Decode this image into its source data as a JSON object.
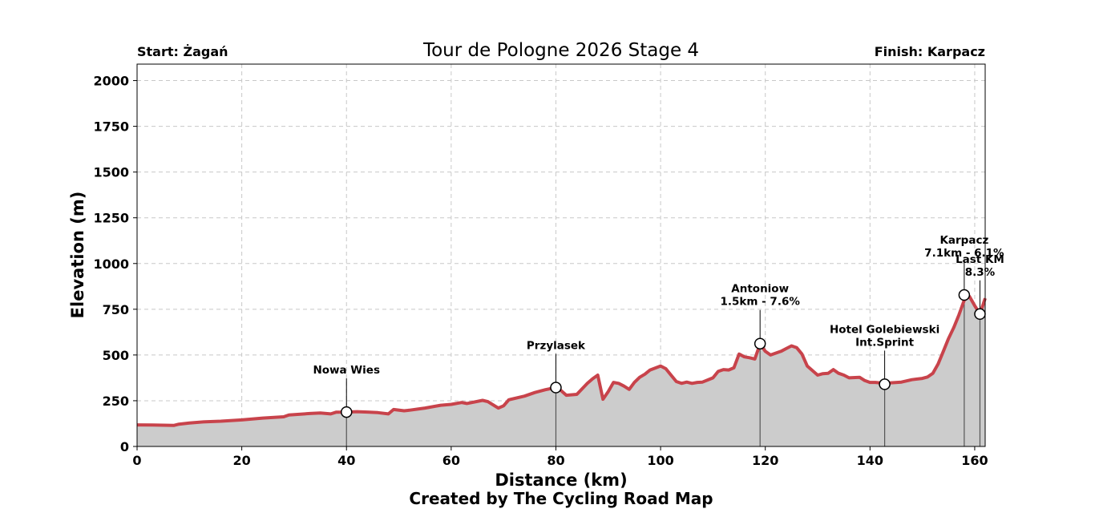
{
  "chart_data": {
    "type": "area",
    "title": "Tour de Pologne 2026 Stage 4",
    "start_label": "Start: Żagań",
    "finish_label": "Finish: Karpacz",
    "xlabel": "Distance (km)",
    "ylabel": "Elevation (m)",
    "credit": "Created by The Cycling Road Map",
    "xlim": [
      0,
      162
    ],
    "ylim": [
      0,
      2090
    ],
    "xticks": [
      0,
      20,
      40,
      60,
      80,
      100,
      120,
      140,
      160
    ],
    "yticks": [
      0,
      250,
      500,
      750,
      1000,
      1250,
      1500,
      1750,
      2000
    ],
    "grid": true,
    "line_color": "#c8434b",
    "fill_color": "#cccccc",
    "profile": {
      "x": [
        0,
        3,
        7,
        8,
        10,
        13,
        16,
        20,
        24,
        28,
        29,
        33,
        35,
        37,
        38,
        40,
        42,
        44,
        46,
        48,
        49,
        51,
        52,
        55,
        58,
        60,
        62,
        63,
        66,
        67,
        69,
        70,
        71,
        74,
        76,
        78,
        80,
        81,
        82,
        84,
        86,
        87,
        88,
        89,
        90,
        91,
        92,
        93,
        94,
        95,
        96,
        97,
        98,
        100,
        101,
        102,
        103,
        104,
        105,
        106,
        107,
        108,
        110,
        111,
        112,
        113,
        114,
        115,
        116,
        117,
        118,
        119,
        120,
        121,
        123,
        124,
        125,
        126,
        127,
        128,
        130,
        131,
        132,
        133,
        134,
        135,
        136,
        138,
        139,
        140,
        141,
        142.8,
        144,
        146,
        148,
        150,
        151,
        152,
        153,
        154,
        155,
        156,
        157,
        158,
        159,
        160,
        161,
        162
      ],
      "y": [
        118,
        117,
        115,
        122,
        128,
        135,
        138,
        145,
        155,
        162,
        172,
        180,
        183,
        178,
        187,
        188,
        190,
        188,
        185,
        178,
        202,
        195,
        198,
        210,
        225,
        230,
        240,
        235,
        252,
        245,
        210,
        222,
        255,
        275,
        295,
        310,
        322,
        305,
        280,
        285,
        345,
        370,
        390,
        258,
        300,
        350,
        345,
        330,
        312,
        350,
        378,
        395,
        418,
        440,
        425,
        390,
        355,
        345,
        352,
        345,
        350,
        352,
        375,
        410,
        420,
        418,
        430,
        505,
        490,
        485,
        478,
        560,
        520,
        500,
        520,
        535,
        550,
        540,
        505,
        440,
        390,
        398,
        400,
        420,
        400,
        390,
        375,
        378,
        360,
        350,
        350,
        345,
        348,
        352,
        365,
        372,
        380,
        400,
        450,
        520,
        590,
        650,
        720,
        800,
        820,
        770,
        724,
        810
      ]
    },
    "annotations": [
      {
        "x": 40,
        "y": 188,
        "lines": [
          "Nowa Wies"
        ]
      },
      {
        "x": 80,
        "y": 322,
        "lines": [
          "Przylasek"
        ]
      },
      {
        "x": 119,
        "y": 562,
        "lines": [
          "Antoniow",
          "1.5km - 7.6%"
        ]
      },
      {
        "x": 142.8,
        "y": 340,
        "lines": [
          "Hotel Golebiewski",
          "Int.Sprint"
        ]
      },
      {
        "x": 158,
        "y": 828,
        "lines": [
          "Karpacz",
          "7.1km - 6.1%"
        ]
      },
      {
        "x": 161,
        "y": 724,
        "lines": [
          "Last KM",
          "8.3%"
        ]
      }
    ]
  }
}
